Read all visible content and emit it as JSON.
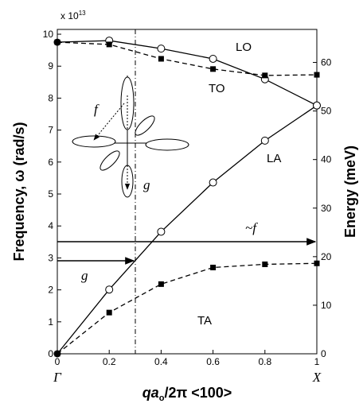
{
  "chart_data": {
    "type": "line",
    "x": [
      0,
      0.2,
      0.4,
      0.6,
      0.8,
      1.0
    ],
    "series": [
      {
        "name": "LO",
        "color": "#000000",
        "marker": "circle",
        "dashed": false,
        "values": [
          9.75,
          9.8,
          9.55,
          9.23,
          8.59,
          7.77
        ]
      },
      {
        "name": "TO",
        "color": "#000000",
        "marker": "square",
        "dashed": true,
        "values": [
          9.75,
          9.68,
          9.23,
          8.91,
          8.71,
          8.73
        ]
      },
      {
        "name": "LA",
        "color": "#000000",
        "marker": "circle",
        "dashed": false,
        "values": [
          0,
          2.01,
          3.82,
          5.36,
          6.67,
          7.77
        ]
      },
      {
        "name": "TA",
        "color": "#000000",
        "marker": "square",
        "dashed": true,
        "values": [
          0,
          1.29,
          2.18,
          2.7,
          2.8,
          2.83
        ]
      }
    ],
    "xlim": [
      0,
      1
    ],
    "xticks": [
      0,
      0.2,
      0.4,
      0.6,
      0.8,
      1
    ],
    "ylim": [
      0,
      10.15
    ],
    "yticks": [
      0,
      1,
      2,
      3,
      4,
      5,
      6,
      7,
      8,
      9,
      10
    ],
    "y2lim": [
      0,
      66.8
    ],
    "y2ticks": [
      0,
      10,
      20,
      30,
      40,
      50,
      60
    ],
    "y_multiplier": {
      "base": "x 10",
      "exponent": "13"
    },
    "symmetry_labels": [
      "Γ",
      "X"
    ],
    "ylabel": "Frequency, ω (rad/s)",
    "y2label": "Energy (meV)",
    "xlabel": [
      "qa",
      "o",
      "/2π <100>"
    ],
    "annotations": {
      "full_arrow": "~f",
      "short_arrow": "g",
      "inset_f": "f",
      "inset_g": "g"
    }
  }
}
